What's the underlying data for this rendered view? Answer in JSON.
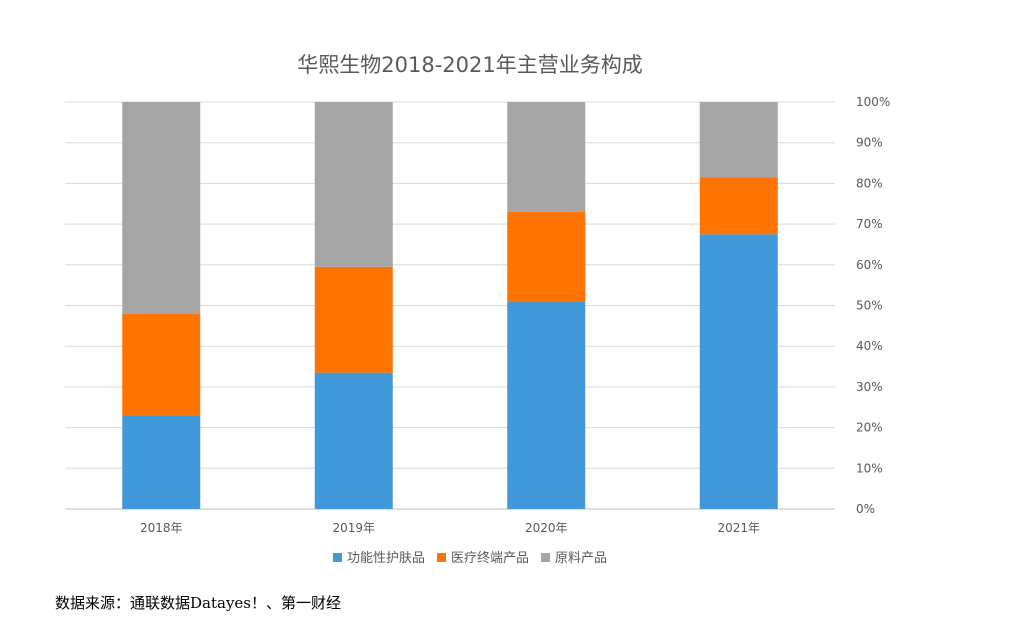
{
  "chart_data": {
    "type": "bar",
    "stacked": true,
    "percent_stacked": true,
    "title": "华熙生物2018-2021年主营业务构成",
    "categories": [
      "2018年",
      "2019年",
      "2020年",
      "2021年"
    ],
    "series": [
      {
        "name": "功能性护肤品",
        "color": "#4299D9",
        "values": [
          23,
          33.5,
          51,
          67.5
        ]
      },
      {
        "name": "医疗终端产品",
        "color": "#FF7400",
        "values": [
          25,
          26,
          22,
          14
        ]
      },
      {
        "name": "原料产品",
        "color": "#A5A5A5",
        "values": [
          52,
          40.5,
          27,
          18.5
        ]
      }
    ],
    "y_axis": {
      "position": "right",
      "min": 0,
      "max": 100,
      "ticks": [
        "0%",
        "10%",
        "20%",
        "30%",
        "40%",
        "50%",
        "60%",
        "70%",
        "80%",
        "90%",
        "100%"
      ]
    },
    "grid": true,
    "legend": "bottom"
  },
  "source_note": "数据来源：通联数据Datayes！、第一财经"
}
